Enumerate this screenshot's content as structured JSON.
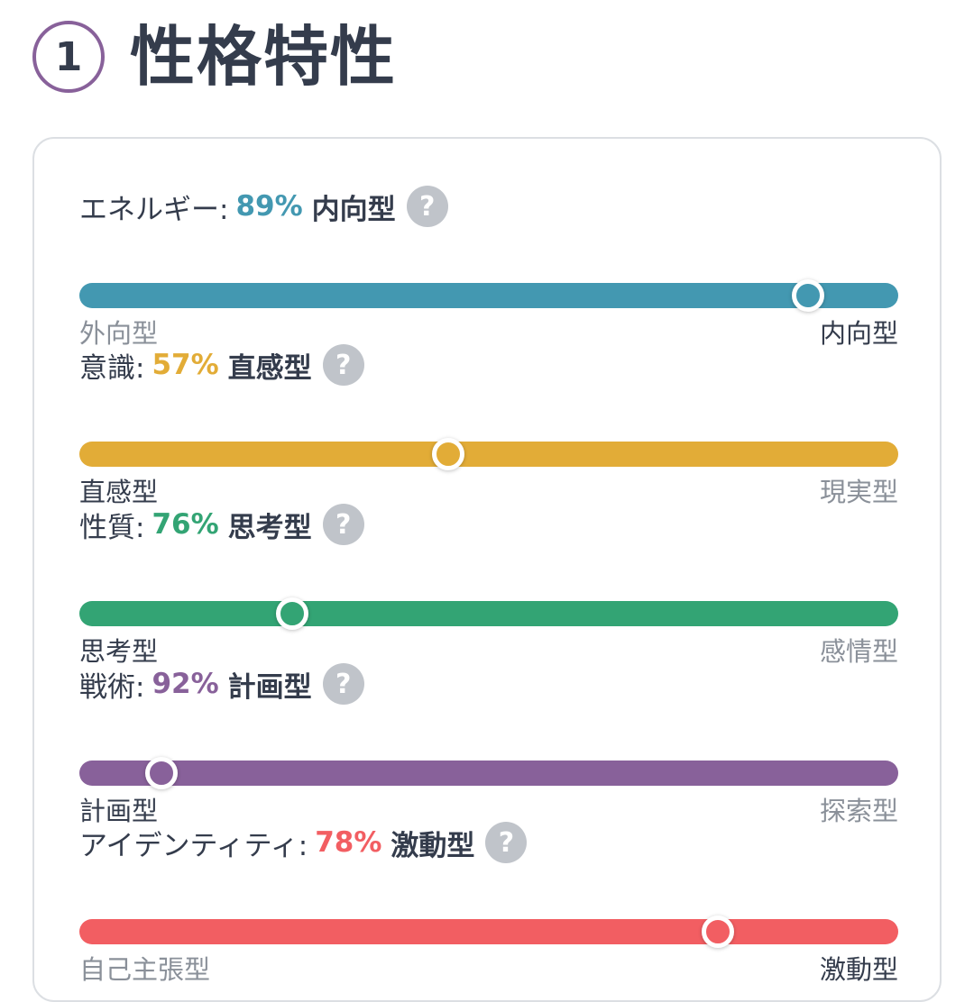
{
  "header": {
    "step_number": "1",
    "title": "性格特性"
  },
  "traits": [
    {
      "name": "エネルギー:",
      "percent": "89%",
      "result": "内向型",
      "color": "#4398b1",
      "left_label": "外向型",
      "right_label": "内向型",
      "active_side": "right",
      "value": 0.89,
      "help": "?"
    },
    {
      "name": "意識:",
      "percent": "57%",
      "result": "直感型",
      "color": "#e2ac37",
      "left_label": "直感型",
      "right_label": "現実型",
      "active_side": "left",
      "value": 0.45,
      "help": "?"
    },
    {
      "name": "性質:",
      "percent": "76%",
      "result": "思考型",
      "color": "#33a474",
      "left_label": "思考型",
      "right_label": "感情型",
      "active_side": "left",
      "value": 0.26,
      "help": "?"
    },
    {
      "name": "戦術:",
      "percent": "92%",
      "result": "計画型",
      "color": "#88619a",
      "left_label": "計画型",
      "right_label": "探索型",
      "active_side": "left",
      "value": 0.1,
      "help": "?"
    },
    {
      "name": "アイデンティティ:",
      "percent": "78%",
      "result": "激動型",
      "color": "#f25e62",
      "left_label": "自己主張型",
      "right_label": "激動型",
      "active_side": "right",
      "value": 0.78,
      "help": "?"
    }
  ],
  "label_colors": {
    "active": "#343c4c",
    "inactive": "#8a9099"
  }
}
